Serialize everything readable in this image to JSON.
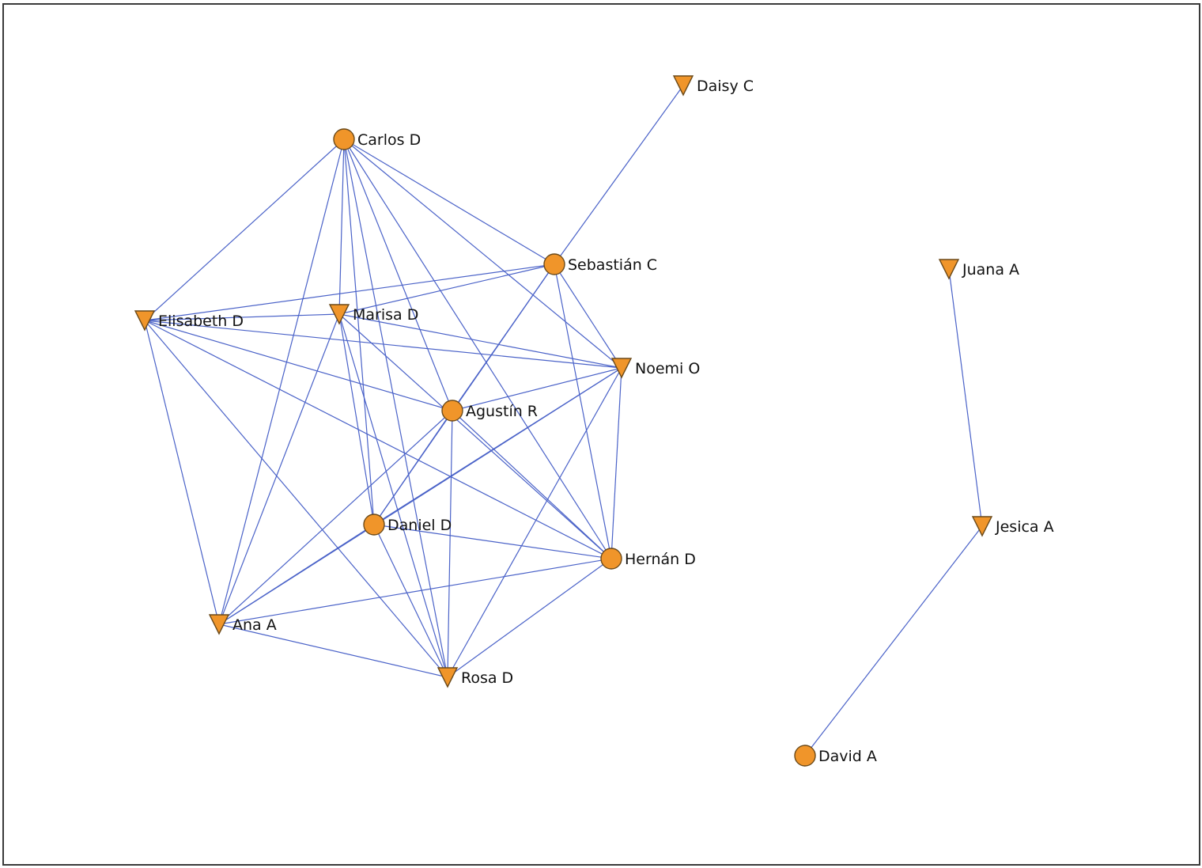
{
  "graph": {
    "nodes": [
      {
        "id": "carlos",
        "label": "Carlos D",
        "shape": "circle"
      },
      {
        "id": "daisy",
        "label": "Daisy C",
        "shape": "triangle"
      },
      {
        "id": "sebastian",
        "label": "Sebastián C",
        "shape": "circle"
      },
      {
        "id": "elisabeth",
        "label": "Elisabeth D",
        "shape": "triangle"
      },
      {
        "id": "marisa",
        "label": "Marisa D",
        "shape": "triangle"
      },
      {
        "id": "noemi",
        "label": "Noemi O",
        "shape": "triangle"
      },
      {
        "id": "agustin",
        "label": "Agustín R",
        "shape": "circle"
      },
      {
        "id": "daniel",
        "label": "Daniel D",
        "shape": "circle"
      },
      {
        "id": "hernan",
        "label": "Hernán D",
        "shape": "circle"
      },
      {
        "id": "ana",
        "label": "Ana A",
        "shape": "triangle"
      },
      {
        "id": "rosa",
        "label": "Rosa D",
        "shape": "triangle"
      },
      {
        "id": "juana",
        "label": "Juana A",
        "shape": "triangle"
      },
      {
        "id": "jesica",
        "label": "Jesica A",
        "shape": "triangle"
      },
      {
        "id": "david",
        "label": "David A",
        "shape": "circle"
      }
    ],
    "edges": [
      [
        "carlos",
        "elisabeth"
      ],
      [
        "carlos",
        "marisa"
      ],
      [
        "carlos",
        "sebastian"
      ],
      [
        "carlos",
        "noemi"
      ],
      [
        "carlos",
        "agustin"
      ],
      [
        "carlos",
        "daniel"
      ],
      [
        "carlos",
        "hernan"
      ],
      [
        "carlos",
        "ana"
      ],
      [
        "carlos",
        "rosa"
      ],
      [
        "sebastian",
        "daisy"
      ],
      [
        "sebastian",
        "elisabeth"
      ],
      [
        "sebastian",
        "marisa"
      ],
      [
        "sebastian",
        "agustin"
      ],
      [
        "sebastian",
        "daniel"
      ],
      [
        "sebastian",
        "hernan"
      ],
      [
        "sebastian",
        "noemi"
      ],
      [
        "elisabeth",
        "marisa"
      ],
      [
        "elisabeth",
        "noemi"
      ],
      [
        "elisabeth",
        "agustin"
      ],
      [
        "elisabeth",
        "hernan"
      ],
      [
        "elisabeth",
        "ana"
      ],
      [
        "elisabeth",
        "rosa"
      ],
      [
        "marisa",
        "noemi"
      ],
      [
        "marisa",
        "daniel"
      ],
      [
        "marisa",
        "hernan"
      ],
      [
        "marisa",
        "ana"
      ],
      [
        "marisa",
        "rosa"
      ],
      [
        "noemi",
        "agustin"
      ],
      [
        "noemi",
        "daniel"
      ],
      [
        "noemi",
        "hernan"
      ],
      [
        "noemi",
        "ana"
      ],
      [
        "noemi",
        "rosa"
      ],
      [
        "agustin",
        "daniel"
      ],
      [
        "agustin",
        "hernan"
      ],
      [
        "agustin",
        "ana"
      ],
      [
        "agustin",
        "rosa"
      ],
      [
        "daniel",
        "hernan"
      ],
      [
        "daniel",
        "ana"
      ],
      [
        "daniel",
        "rosa"
      ],
      [
        "hernan",
        "ana"
      ],
      [
        "hernan",
        "rosa"
      ],
      [
        "ana",
        "rosa"
      ],
      [
        "juana",
        "jesica"
      ],
      [
        "jesica",
        "david"
      ]
    ]
  }
}
